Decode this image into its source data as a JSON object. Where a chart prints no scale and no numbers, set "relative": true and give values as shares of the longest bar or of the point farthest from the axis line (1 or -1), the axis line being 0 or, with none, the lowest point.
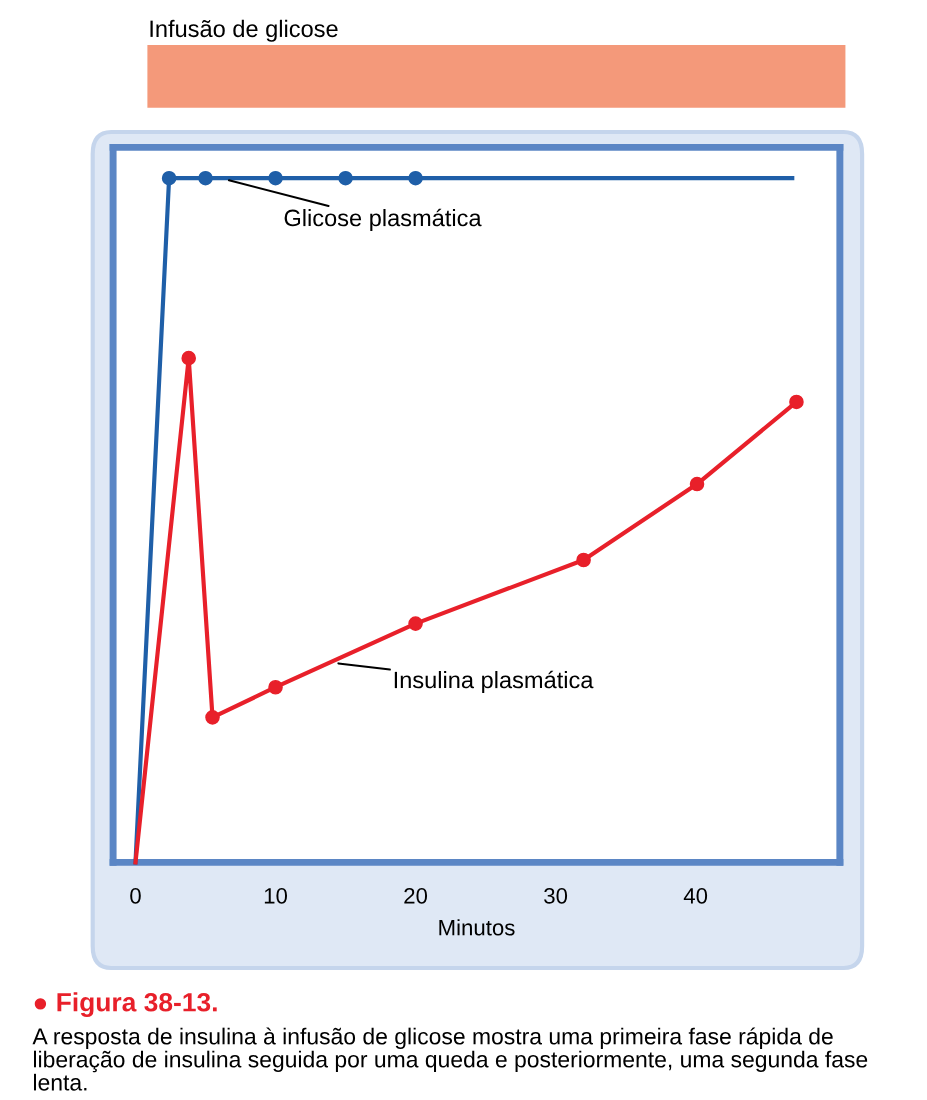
{
  "chart_data": {
    "type": "line",
    "relative": true,
    "xlabel": "Minutos",
    "xlim": [
      -1.6,
      50.3
    ],
    "xticks": [
      0,
      10,
      20,
      30,
      40
    ],
    "tick_labels": "x",
    "grid": false,
    "legend": false,
    "series": [
      {
        "name": "Glicose plasmática",
        "color": "#1f5fa8",
        "marker": "none",
        "x": [
          0,
          2.4,
          46.9
        ],
        "values": [
          0,
          1,
          1
        ]
      },
      {
        "type": "scatter",
        "color": "#1f5fa8",
        "marker": "circle",
        "x": [
          2.4,
          5,
          10,
          15,
          20
        ],
        "values": [
          1,
          1,
          1,
          1,
          1
        ]
      },
      {
        "name": "Insulina plasmática",
        "color": "#e8202a",
        "marker": "none",
        "x": [
          0,
          3.8,
          5.5,
          10,
          20,
          32,
          40.1,
          47.2
        ],
        "values": [
          0,
          0.737,
          0.212,
          0.256,
          0.349,
          0.442,
          0.553,
          0.673
        ]
      },
      {
        "type": "scatter",
        "color": "#e8202a",
        "marker": "circle",
        "x": [
          3.8,
          5.5,
          10,
          20,
          32,
          40.1,
          47.2
        ],
        "values": [
          0.737,
          0.212,
          0.256,
          0.349,
          0.442,
          0.553,
          0.673
        ]
      }
    ],
    "annotations": [
      "Infusão de glicose",
      "● Figura 38-13.",
      "A resposta de insulina à infusão de glicose mostra uma primeira fase rápida de liberação de insulina seguida por uma queda e posteriormente, uma segunda fase lenta."
    ]
  }
}
